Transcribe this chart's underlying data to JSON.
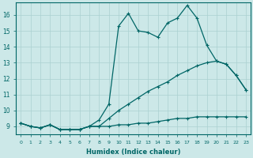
{
  "title": "",
  "xlabel": "Humidex (Indice chaleur)",
  "bg_color": "#cce8e8",
  "line_color": "#006666",
  "grid_color": "#aad0d0",
  "xlim": [
    -0.5,
    23.5
  ],
  "ylim": [
    8.5,
    16.8
  ],
  "xticks": [
    0,
    1,
    2,
    3,
    4,
    5,
    6,
    7,
    8,
    9,
    10,
    11,
    12,
    13,
    14,
    15,
    16,
    17,
    18,
    19,
    20,
    21,
    22,
    23
  ],
  "yticks": [
    9,
    10,
    11,
    12,
    13,
    14,
    15,
    16
  ],
  "series3_x": [
    0,
    1,
    2,
    3,
    4,
    5,
    6,
    7,
    8,
    9,
    10,
    11,
    12,
    13,
    14,
    15,
    16,
    17,
    18,
    19,
    20,
    21,
    22,
    23
  ],
  "series3_y": [
    9.2,
    9.0,
    8.9,
    9.1,
    8.8,
    8.8,
    8.8,
    9.0,
    9.4,
    10.4,
    15.3,
    16.1,
    15.0,
    14.9,
    14.6,
    15.5,
    15.8,
    16.6,
    15.8,
    14.1,
    13.1,
    12.9,
    12.2,
    11.3
  ],
  "series2_x": [
    0,
    1,
    2,
    3,
    4,
    5,
    6,
    7,
    8,
    9,
    10,
    11,
    12,
    13,
    14,
    15,
    16,
    17,
    18,
    19,
    20,
    21,
    22,
    23
  ],
  "series2_y": [
    9.2,
    9.0,
    8.9,
    9.1,
    8.8,
    8.8,
    8.8,
    9.0,
    9.0,
    9.5,
    10.0,
    10.4,
    10.8,
    11.2,
    11.5,
    11.8,
    12.2,
    12.5,
    12.8,
    13.0,
    13.1,
    12.9,
    12.2,
    11.3
  ],
  "series1_x": [
    0,
    1,
    2,
    3,
    4,
    5,
    6,
    7,
    8,
    9,
    10,
    11,
    12,
    13,
    14,
    15,
    16,
    17,
    18,
    19,
    20,
    21,
    22,
    23
  ],
  "series1_y": [
    9.2,
    9.0,
    8.9,
    9.1,
    8.8,
    8.8,
    8.8,
    9.0,
    9.0,
    9.0,
    9.1,
    9.1,
    9.2,
    9.2,
    9.3,
    9.4,
    9.5,
    9.5,
    9.6,
    9.6,
    9.6,
    9.6,
    9.6,
    9.6
  ]
}
